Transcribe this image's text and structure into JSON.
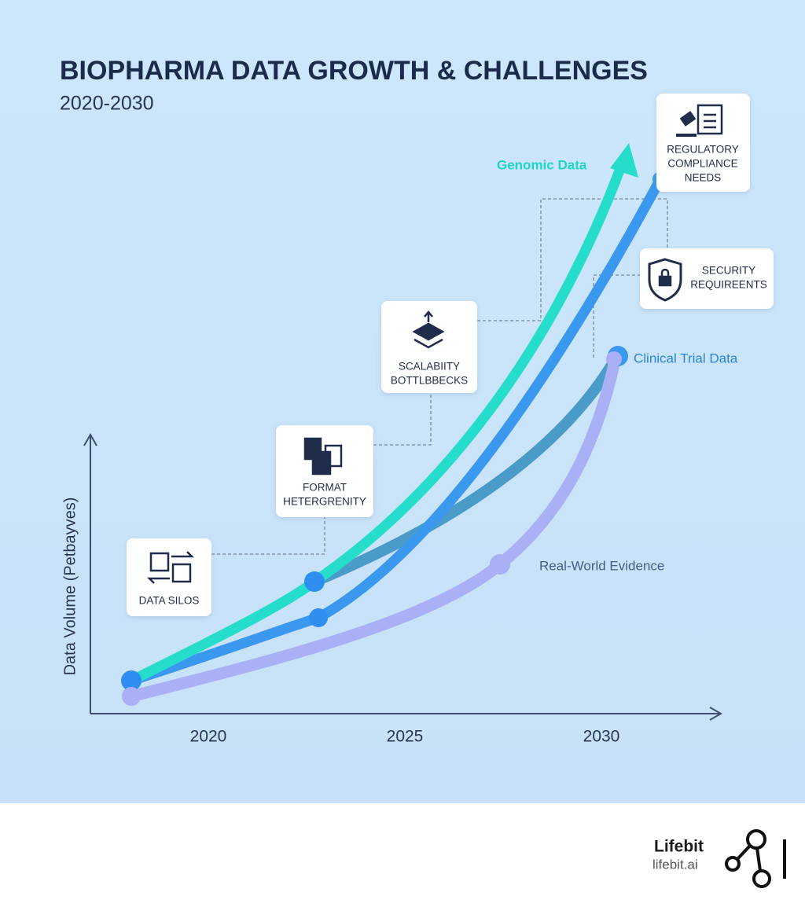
{
  "chart_data": {
    "type": "line",
    "title": "BIOPHARMA DATA GROWTH & CHALLENGES",
    "subtitle": "2020-2030",
    "y_label": "Data Volume (Petbayves)",
    "xlim": [
      2017,
      2033
    ],
    "xticks": [
      2020,
      2025,
      2030
    ],
    "curve_labels": [
      {
        "text": "Genomic Data",
        "color": "#1fd6c4"
      },
      {
        "text": "Clinical Trial Data",
        "color": "#2a86d8"
      },
      {
        "text": "Real-World Evidence",
        "color": "#4a5a86"
      }
    ],
    "callouts": [
      {
        "lines": [
          "DATA SILOS"
        ]
      },
      {
        "lines": [
          "FORMAT",
          "HETERGRENITY"
        ]
      },
      {
        "lines": [
          "SCALABIITY",
          "BOTTLBBECKS"
        ]
      },
      {
        "lines": [
          "REGULATORY",
          "COMPLIANCE",
          "NEEDS"
        ]
      },
      {
        "lines": [
          "SECURITY",
          "REQUIREENTS"
        ]
      }
    ]
  },
  "footer": {
    "brand": "Lifebit",
    "url": "lifebit.ai"
  }
}
